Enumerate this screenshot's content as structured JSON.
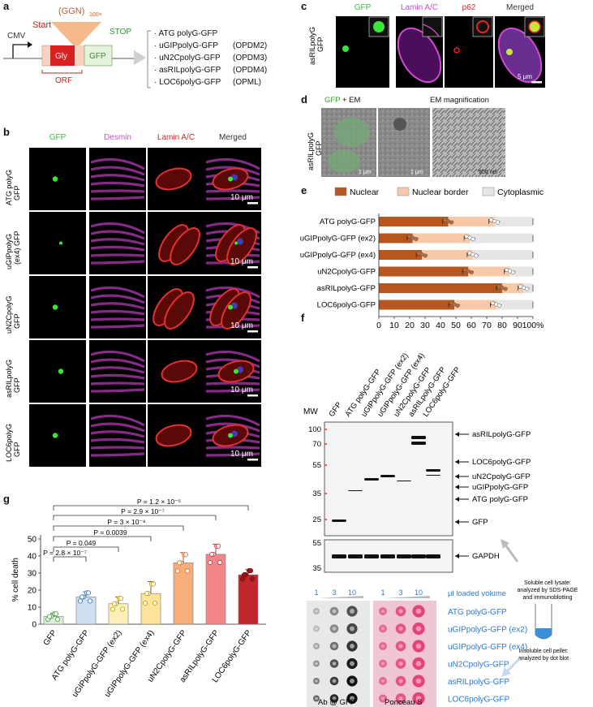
{
  "panels": {
    "a": "a",
    "b": "b",
    "c": "c",
    "d": "d",
    "e": "e",
    "f": "f",
    "g": "g"
  },
  "panel_a": {
    "repeat_label": "(GGN)",
    "repeat_sub": "100×",
    "start": "Start",
    "stop": "STOP",
    "cmv": "CMV",
    "gly": "Gly",
    "gfp": "GFP",
    "orf": "ORF",
    "constructs": [
      {
        "name": "· ATG polyG-GFP",
        "tag": ""
      },
      {
        "name": "· uGIPpolyG-GFP",
        "tag": "(OPDM2)"
      },
      {
        "name": "· uN2CpolyG-GFP",
        "tag": "(OPDM3)"
      },
      {
        "name": "· asRILpolyG-GFP",
        "tag": "(OPDM4)"
      },
      {
        "name": "· LOC6polyG-GFP",
        "tag": "(OPML)"
      }
    ]
  },
  "panel_b": {
    "columns": [
      "GFP",
      "Desmin",
      "Lamin A/C",
      "Merged"
    ],
    "rows": [
      "ATG polyG GFP",
      "uGIPpolyG (ex4) GFP",
      "uN2CpolyG GFP",
      "asRILpolyG GFP",
      "LOC6polyG GFP"
    ],
    "row_lines": [
      [
        "ATG polyG",
        "GFP"
      ],
      [
        "uGIPpolyG",
        "(ex4) GFP"
      ],
      [
        "uN2CpolyG",
        "GFP"
      ],
      [
        "asRILpolyG",
        "GFP"
      ],
      [
        "LOC6polyG",
        "GFP"
      ]
    ],
    "scale": "10 μm"
  },
  "panel_c": {
    "columns": [
      "GFP",
      "Lamin A/C",
      "p62",
      "Merged"
    ],
    "row_lines": [
      "asRILpolyG",
      "GFP"
    ],
    "scale": "5 μm"
  },
  "panel_d": {
    "title_gfp": "GFP",
    "title_em": "+ EM",
    "title_mag": "EM magnification",
    "row_lines": [
      "asRILpolyG",
      "GFP"
    ],
    "scales": [
      "1 μm",
      "1 μm",
      "500 nm"
    ]
  },
  "panel_f": {
    "mw_label": "MW",
    "lanes": [
      "GFP",
      "ATG polyG-GFP",
      "uGIPpolyG-GFP (ex2)",
      "uGIPpolyG-GFP (ex4)",
      "uN2CpolyG-GFP",
      "asRILpolyG-GFP",
      "LOC6polyG-GFP"
    ],
    "mw_top": [
      "100",
      "70",
      "55",
      "35",
      "25"
    ],
    "mw_bottom": [
      "55",
      "35"
    ],
    "band_labels": [
      "asRILpolyG-GFP",
      "LOC6polyG-GFP",
      "uN2CpolyG-GFP",
      "uGIPpolyG-GFP",
      "ATG polyG-GFP",
      "GFP"
    ],
    "gapdh": "GAPDH",
    "lysate_note": [
      "Soluble cell lysate:",
      "analyzed by SDS-PAGE",
      "and immunoblotting"
    ],
    "pellet_note": [
      "Insoluble cell pellet:",
      "analyzed by dot blot"
    ],
    "dot_volumes": [
      "1",
      "3",
      "10"
    ],
    "dot_volume_label": "μl loaded volume",
    "dot_rows": [
      "ATG polyG-GFP",
      "uGIPpolyG-GFP (ex2)",
      "uGIPpolyG-GFP (ex4)",
      "uN2CpolyG-GFP",
      "asRILpolyG-GFP",
      "LOC6polyG-GFP"
    ],
    "dot_left_label": "Ab @ GFP",
    "dot_right_label": "Ponceau S"
  },
  "chart_data": [
    {
      "type": "bar",
      "id": "e",
      "orientation": "horizontal-stacked",
      "legend": [
        "Nuclear",
        "Nuclear border",
        "Cytoplasmic"
      ],
      "legend_colors": [
        "#b8561f",
        "#f7c9a8",
        "#e6e6e6"
      ],
      "categories": [
        "ATG polyG-GFP",
        "uGIPpolyG-GFP (ex2)",
        "uGIPpolyG-GFP (ex4)",
        "uN2CpolyG-GFP",
        "asRILpolyG-GFP",
        "LOC6polyG-GFP"
      ],
      "series": [
        {
          "name": "Nuclear",
          "values": [
            45,
            22,
            28,
            58,
            80,
            49
          ]
        },
        {
          "name": "Nuclear border",
          "values": [
            30,
            37,
            33,
            27,
            14,
            27
          ]
        },
        {
          "name": "Cytoplasmic",
          "values": [
            25,
            41,
            39,
            15,
            6,
            24
          ]
        }
      ],
      "xticks": [
        "0",
        "10",
        "20",
        "30",
        "40",
        "50",
        "60",
        "70",
        "80",
        "90",
        "100%"
      ],
      "xlim": [
        0,
        100
      ]
    },
    {
      "type": "bar",
      "id": "g",
      "categories": [
        "GFP",
        "ATG polyG-GFP",
        "uGIPpolyG-GFP (ex2)",
        "uGIPpolyG-GFP (ex4)",
        "uN2CpolyG-GFP",
        "asRILpolyG-GFP",
        "LOC6polyG-GFP"
      ],
      "values": [
        4.5,
        16,
        12,
        18,
        36,
        41,
        29
      ],
      "errors": [
        2,
        3,
        4,
        7,
        6,
        6,
        3
      ],
      "colors": [
        "#dcefd6",
        "#cfe0f4",
        "#fcefb8",
        "#fde49a",
        "#f7ae7a",
        "#f2868a",
        "#c0272d"
      ],
      "ylabel": "% cell death",
      "yticks": [
        "0",
        "10",
        "20",
        "30",
        "40",
        "50"
      ],
      "ylim": [
        0,
        50
      ],
      "pvalues": [
        "P = 2.8 × 10⁻⁷",
        "P = 0.049",
        "P = 0.0039",
        "P = 3 × 10⁻⁸",
        "P = 2.9 × 10⁻⁷",
        "P = 1.2 × 10⁻⁵"
      ]
    }
  ]
}
